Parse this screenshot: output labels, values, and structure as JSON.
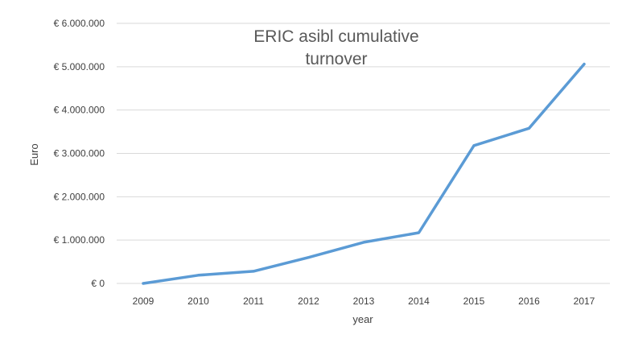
{
  "chart_data": {
    "type": "line",
    "title_lines": [
      "ERIC asibl cumulative",
      "turnover"
    ],
    "xlabel": "year",
    "ylabel": "Euro",
    "categories": [
      "2009",
      "2010",
      "2011",
      "2012",
      "2013",
      "2014",
      "2015",
      "2016",
      "2017"
    ],
    "series": [
      {
        "values": [
          0,
          190000,
          280000,
          600000,
          950000,
          1170000,
          3180000,
          3580000,
          5060000
        ],
        "color": "#5b9bd5"
      }
    ],
    "ylim": [
      0,
      6000000
    ],
    "y_ticks": [
      {
        "value": 0,
        "label": "€ 0"
      },
      {
        "value": 1000000,
        "label": "€ 1.000.000"
      },
      {
        "value": 2000000,
        "label": "€ 2.000.000"
      },
      {
        "value": 3000000,
        "label": "€ 3.000.000"
      },
      {
        "value": 4000000,
        "label": "€ 4.000.000"
      },
      {
        "value": 5000000,
        "label": "€ 5.000.000"
      },
      {
        "value": 6000000,
        "label": "€ 6.000.000"
      }
    ],
    "grid": true,
    "gridline_color": "#d9d9d9",
    "legend": "none"
  }
}
